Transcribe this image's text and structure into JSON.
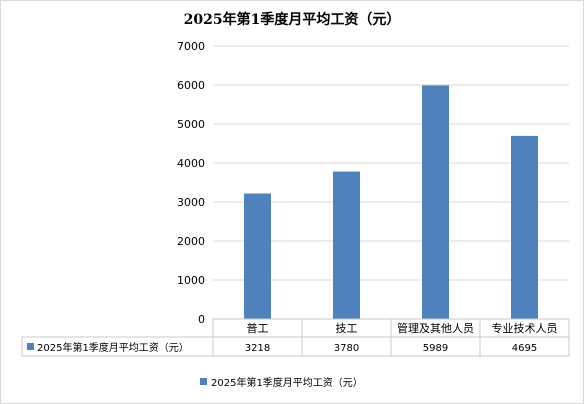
{
  "chart_data": {
    "type": "bar",
    "title": "2025年第1季度月平均工资（元）",
    "categories": [
      "普工",
      "技工",
      "管理及其他人员",
      "专业技术人员"
    ],
    "series": [
      {
        "name": "2025年第1季度月平均工资（元）",
        "values": [
          3218,
          3780,
          5989,
          4695
        ],
        "color": "#4f81bd"
      }
    ],
    "ylim": [
      0,
      7000
    ],
    "yticks": [
      0,
      1000,
      2000,
      3000,
      4000,
      5000,
      6000,
      7000
    ],
    "grid": true,
    "data_table": true,
    "legend": "bottom"
  }
}
